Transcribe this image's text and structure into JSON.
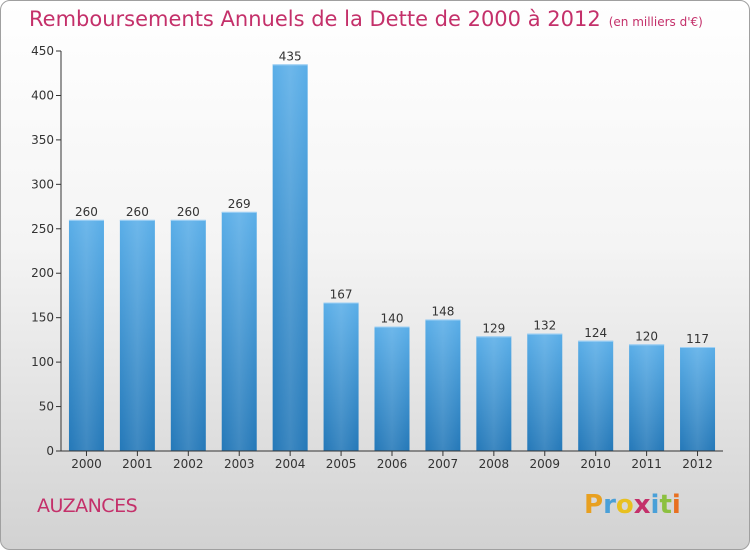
{
  "chart_data": {
    "type": "bar",
    "title": "Remboursements Annuels de la Dette de 2000 à 2012",
    "subtitle": "(en milliers d'€)",
    "categories": [
      "2000",
      "2001",
      "2002",
      "2003",
      "2004",
      "2005",
      "2006",
      "2007",
      "2008",
      "2009",
      "2010",
      "2011",
      "2012"
    ],
    "values": [
      260,
      260,
      260,
      269,
      435,
      167,
      140,
      148,
      129,
      132,
      124,
      120,
      117
    ],
    "ylim": [
      0,
      450
    ],
    "yticks": [
      0,
      50,
      100,
      150,
      200,
      250,
      300,
      350,
      400,
      450
    ],
    "grid": false,
    "bar_color": "#4a9ddc"
  },
  "place_name": "AUZANCES",
  "logo": {
    "letters": [
      "P",
      "r",
      "o",
      "x",
      "i",
      "t",
      "i"
    ],
    "colors": [
      "#e8a020",
      "#4aa0d8",
      "#e8c020",
      "#c4306a",
      "#4aa0d8",
      "#8cc040",
      "#e87020"
    ]
  },
  "colors": {
    "title": "#c4306a",
    "axis": "#333333"
  }
}
